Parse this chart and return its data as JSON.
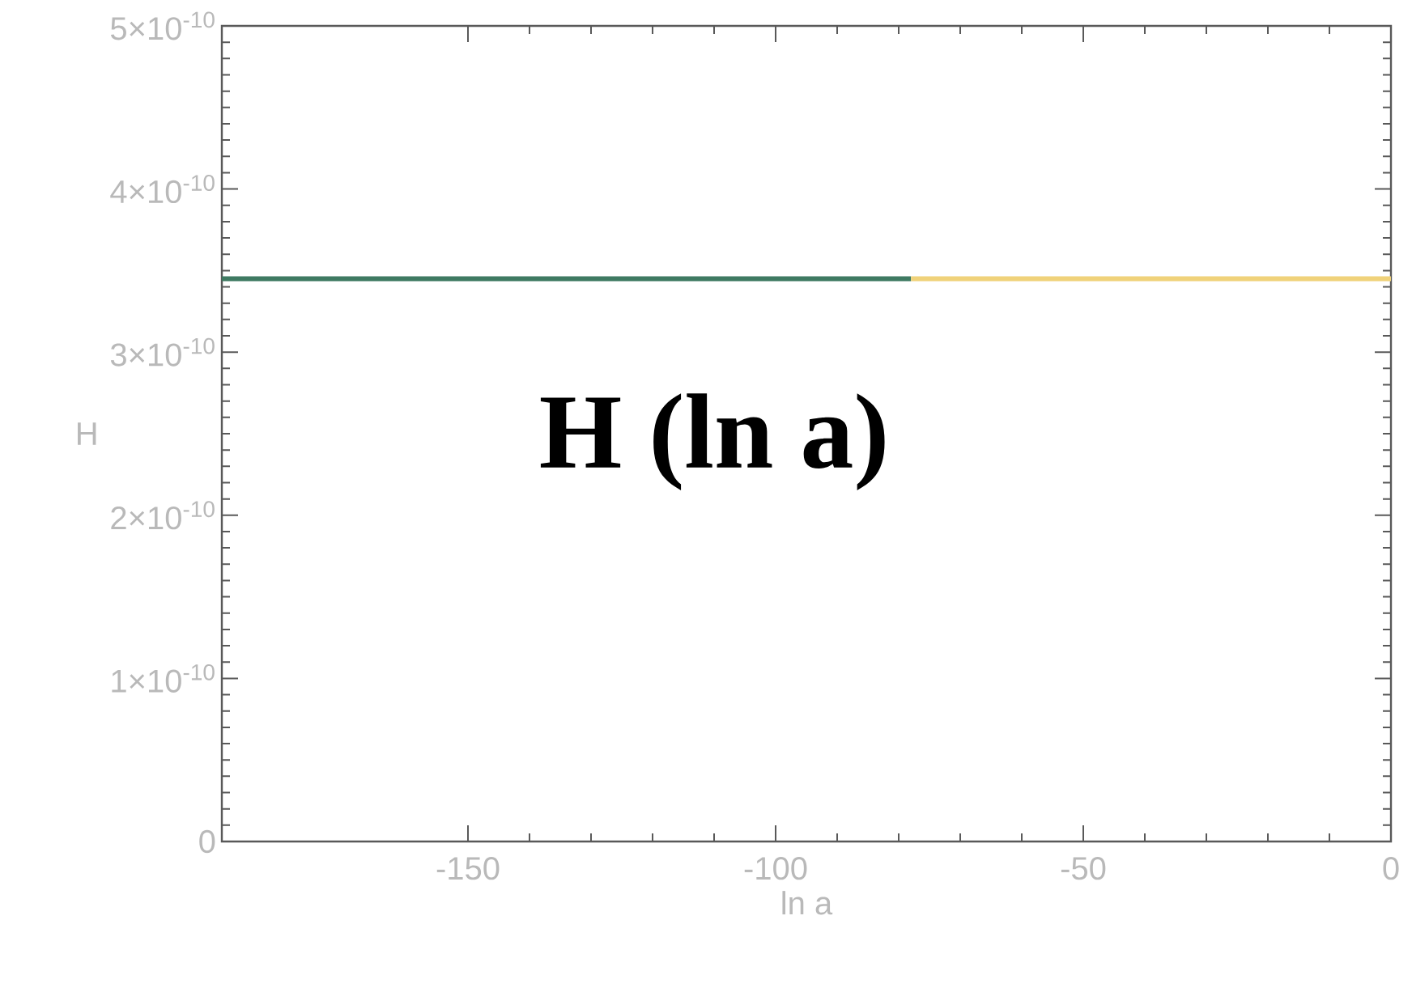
{
  "chart_data": {
    "type": "line",
    "xlabel": "ln a",
    "ylabel": "H",
    "annotations": [
      "**H (ln a)**"
    ],
    "xlim": [
      -190,
      0
    ],
    "ylim": [
      0,
      5e-10
    ],
    "xticks": [
      -150,
      -100,
      -50,
      0
    ],
    "yticks": [
      {
        "value": 0,
        "label": "0"
      },
      {
        "value": 1e-10,
        "label": "1×10$^{-10}$"
      },
      {
        "value": 2e-10,
        "label": "2×10$^{-10}$"
      },
      {
        "value": 3e-10,
        "label": "3×10$^{-10}$"
      },
      {
        "value": 4e-10,
        "label": "4×10$^{-10}$"
      },
      {
        "value": 5e-10,
        "label": "5×10$^{-10}$"
      }
    ],
    "series": [
      {
        "color": "#3f7a62",
        "x": [
          -190,
          -78
        ],
        "values": [
          3.45e-10,
          3.45e-10
        ]
      },
      {
        "color": "#f0d27a",
        "x": [
          -78,
          0
        ],
        "values": [
          3.45e-10,
          3.45e-10
        ]
      }
    ],
    "grid": false,
    "legend": false,
    "marker": "none",
    "line_style": "solid"
  }
}
